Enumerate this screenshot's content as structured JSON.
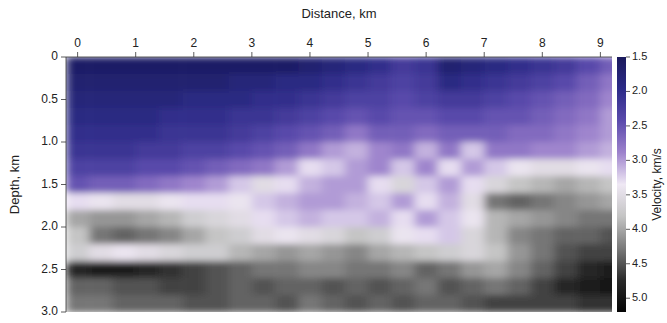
{
  "chart_data": {
    "type": "heatmap",
    "x_label": "Distance, km",
    "y_label": "Depth, km",
    "colorbar_label": "Velocity, km/s",
    "x": [
      0,
      0.4,
      0.8,
      1.2,
      1.6,
      2.0,
      2.4,
      2.8,
      3.2,
      3.6,
      4.0,
      4.4,
      4.8,
      5.2,
      5.6,
      6.0,
      6.4,
      6.8,
      7.2,
      7.6,
      8.0,
      8.4,
      8.8,
      9.2
    ],
    "y": [
      0.1,
      0.3,
      0.5,
      0.7,
      0.9,
      1.1,
      1.3,
      1.5,
      1.7,
      1.9,
      2.1,
      2.3,
      2.5,
      2.7,
      2.9
    ],
    "values": [
      [
        1.6,
        1.6,
        1.6,
        1.6,
        1.6,
        1.6,
        1.6,
        1.6,
        1.6,
        1.6,
        1.7,
        1.8,
        1.9,
        2.0,
        2.2,
        2.1,
        1.7,
        1.8,
        1.9,
        2.0,
        2.1,
        2.2,
        2.4,
        2.6
      ],
      [
        1.7,
        1.7,
        1.7,
        1.7,
        1.7,
        1.7,
        1.7,
        1.8,
        1.8,
        1.9,
        1.9,
        2.0,
        2.1,
        2.2,
        2.3,
        2.2,
        1.9,
        2.0,
        2.1,
        2.2,
        2.3,
        2.4,
        2.6,
        2.8
      ],
      [
        1.8,
        1.8,
        1.8,
        1.8,
        1.8,
        1.9,
        1.9,
        1.9,
        2.0,
        2.0,
        2.1,
        2.2,
        2.3,
        2.3,
        2.4,
        2.3,
        2.2,
        2.2,
        2.3,
        2.4,
        2.5,
        2.6,
        2.7,
        2.9
      ],
      [
        1.9,
        1.9,
        1.9,
        1.9,
        2.0,
        2.0,
        2.0,
        2.1,
        2.1,
        2.2,
        2.3,
        2.4,
        2.5,
        2.4,
        2.5,
        2.5,
        2.4,
        2.4,
        2.5,
        2.5,
        2.6,
        2.7,
        2.8,
        3.0
      ],
      [
        2.0,
        2.0,
        2.0,
        2.0,
        2.1,
        2.1,
        2.1,
        2.2,
        2.3,
        2.4,
        2.5,
        2.6,
        2.8,
        2.6,
        2.6,
        2.7,
        2.6,
        2.6,
        2.6,
        2.7,
        2.7,
        2.8,
        2.9,
        3.0
      ],
      [
        2.1,
        2.1,
        2.1,
        2.2,
        2.2,
        2.3,
        2.3,
        2.4,
        2.5,
        2.6,
        2.8,
        3.0,
        3.1,
        2.9,
        2.8,
        3.1,
        2.8,
        3.2,
        2.8,
        2.8,
        2.9,
        2.9,
        3.0,
        3.1
      ],
      [
        2.3,
        2.3,
        2.3,
        2.4,
        2.4,
        2.5,
        2.6,
        2.7,
        2.8,
        3.0,
        3.3,
        3.2,
        3.0,
        2.9,
        3.2,
        2.9,
        3.3,
        3.0,
        3.2,
        3.4,
        3.5,
        3.5,
        3.4,
        3.3
      ],
      [
        2.5,
        2.6,
        2.6,
        2.7,
        2.8,
        2.9,
        3.0,
        3.2,
        3.5,
        3.3,
        3.1,
        3.0,
        3.0,
        3.3,
        3.6,
        3.2,
        3.0,
        3.3,
        3.6,
        3.8,
        3.9,
        4.0,
        3.9,
        3.8
      ],
      [
        3.3,
        3.4,
        3.5,
        3.5,
        3.4,
        3.3,
        3.3,
        3.4,
        3.2,
        3.1,
        3.0,
        3.0,
        3.1,
        3.2,
        3.0,
        3.3,
        3.1,
        3.5,
        4.3,
        4.4,
        4.3,
        4.2,
        4.1,
        4.0
      ],
      [
        4.0,
        4.1,
        4.1,
        4.0,
        3.9,
        3.7,
        3.6,
        3.5,
        3.3,
        3.2,
        3.1,
        3.2,
        3.2,
        3.1,
        3.3,
        3.0,
        3.2,
        3.4,
        3.9,
        4.0,
        4.1,
        4.2,
        4.3,
        4.3
      ],
      [
        3.8,
        4.3,
        4.4,
        4.3,
        4.2,
        4.0,
        3.8,
        3.7,
        3.5,
        3.4,
        3.5,
        3.6,
        3.8,
        3.7,
        3.4,
        3.3,
        3.2,
        3.6,
        3.9,
        4.2,
        4.3,
        4.4,
        4.4,
        4.5
      ],
      [
        3.7,
        3.5,
        3.4,
        3.5,
        3.6,
        3.7,
        3.7,
        3.9,
        4.0,
        4.1,
        4.0,
        4.1,
        4.2,
        4.0,
        3.9,
        3.8,
        3.7,
        3.6,
        3.8,
        4.1,
        4.3,
        4.5,
        4.6,
        4.6
      ],
      [
        4.8,
        4.9,
        4.9,
        4.8,
        4.7,
        4.6,
        4.5,
        4.4,
        4.3,
        4.3,
        4.2,
        4.2,
        4.3,
        4.3,
        4.2,
        4.4,
        4.3,
        4.1,
        4.0,
        4.2,
        4.4,
        4.6,
        4.8,
        4.9
      ],
      [
        4.4,
        4.4,
        4.5,
        4.5,
        4.6,
        4.6,
        4.5,
        4.4,
        4.5,
        4.4,
        4.4,
        4.5,
        4.4,
        4.5,
        4.4,
        4.3,
        4.5,
        4.4,
        4.3,
        4.4,
        4.6,
        4.8,
        4.9,
        5.0
      ],
      [
        4.3,
        4.3,
        4.4,
        4.4,
        4.4,
        4.5,
        4.5,
        4.4,
        4.4,
        4.5,
        4.3,
        4.4,
        4.5,
        4.4,
        4.5,
        4.4,
        4.4,
        4.5,
        4.6,
        4.6,
        4.6,
        4.6,
        4.7,
        4.7
      ]
    ],
    "xlim": [
      -0.2,
      9.2
    ],
    "ylim": [
      0,
      3
    ],
    "xticks": [
      0,
      1,
      2,
      3,
      4,
      5,
      6,
      7,
      8,
      9
    ],
    "yticks": [
      0,
      0.5,
      {
        "value": 1,
        "label": "1.0"
      },
      1.5,
      {
        "value": 2,
        "label": "2.0"
      },
      2.5,
      {
        "value": 3,
        "label": "3.0"
      }
    ],
    "colorbar_lim": [
      1.5,
      5.2
    ],
    "colorbar_ticks": [
      1.5,
      {
        "value": 2,
        "label": "2.0"
      },
      2.5,
      {
        "value": 3,
        "label": "3.0"
      },
      3.5,
      {
        "value": 4,
        "label": "4.0"
      },
      4.5,
      {
        "value": 5,
        "label": "5.0"
      }
    ]
  }
}
